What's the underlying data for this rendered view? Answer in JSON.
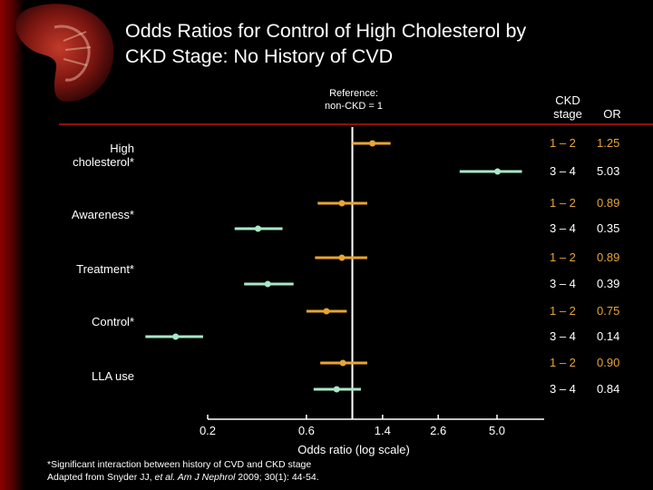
{
  "title_lines": [
    "Odds Ratios for Control of High Cholesterol by",
    "CKD Stage: No History of CVD"
  ],
  "reference_note": [
    "Reference:",
    "non-CKD = 1"
  ],
  "column_headers": {
    "stage": [
      "CKD",
      "stage"
    ],
    "or": "OR"
  },
  "colors": {
    "stage_1_2": "#e8a532",
    "stage_3_4": "#a8e8c8",
    "reference_line": "#ffffff",
    "title_rule": "#8b0f0f"
  },
  "chart_data": {
    "type": "forest",
    "xlabel": "Odds ratio (log scale)",
    "x_scale": "log",
    "xlim": [
      0.2,
      5.0
    ],
    "xticks": [
      "0.2",
      "0.6",
      "1.4",
      "2.6",
      "5.0"
    ],
    "reference_value": 1,
    "groups": [
      {
        "label": "High cholesterol*",
        "rows": [
          {
            "stage": "1 – 2",
            "or_text": "1.25",
            "or": 1.25,
            "ci": [
              1.0,
              1.53
            ]
          },
          {
            "stage": "3 – 4",
            "or_text": "5.03",
            "or": 5.03,
            "ci": [
              3.3,
              6.6
            ]
          }
        ]
      },
      {
        "label": "Awareness*",
        "rows": [
          {
            "stage": "1 – 2",
            "or_text": "0.89",
            "or": 0.89,
            "ci": [
              0.68,
              1.18
            ]
          },
          {
            "stage": "3 – 4",
            "or_text": "0.35",
            "or": 0.35,
            "ci": [
              0.27,
              0.46
            ]
          }
        ]
      },
      {
        "label": "Treatment*",
        "rows": [
          {
            "stage": "1 – 2",
            "or_text": "0.89",
            "or": 0.89,
            "ci": [
              0.66,
              1.18
            ]
          },
          {
            "stage": "3 – 4",
            "or_text": "0.39",
            "or": 0.39,
            "ci": [
              0.3,
              0.52
            ]
          }
        ]
      },
      {
        "label": "Control*",
        "rows": [
          {
            "stage": "1 – 2",
            "or_text": "0.75",
            "or": 0.75,
            "ci": [
              0.6,
              0.94
            ]
          },
          {
            "stage": "3 – 4",
            "or_text": "0.14",
            "or": 0.14,
            "ci": [
              0.1,
              0.19
            ]
          }
        ]
      },
      {
        "label": "LLA use",
        "rows": [
          {
            "stage": "1 – 2",
            "or_text": "0.90",
            "or": 0.9,
            "ci": [
              0.7,
              1.18
            ]
          },
          {
            "stage": "3 – 4",
            "or_text": "0.84",
            "or": 0.84,
            "ci": [
              0.65,
              1.1
            ]
          }
        ]
      }
    ]
  },
  "footnotes": {
    "line1": "*Significant interaction between history of CVD and CKD stage",
    "line2_prefix": "Adapted from Snyder JJ, ",
    "line2_etal": "et al.",
    "line2_journal": " Am J Nephrol",
    "line2_suffix": " 2009; 30(1): 44-54."
  }
}
